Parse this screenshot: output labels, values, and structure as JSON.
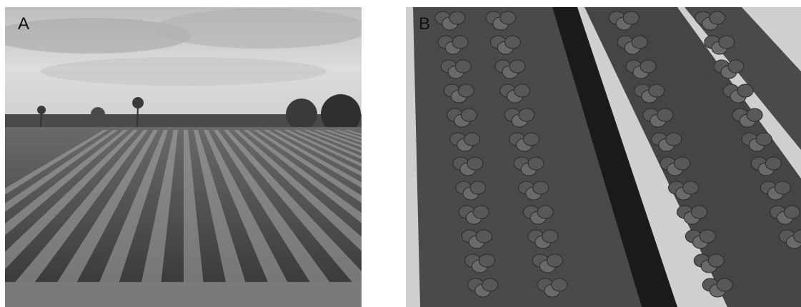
{
  "figure": {
    "panels": [
      {
        "label": "A",
        "icon": "field-rows-photo"
      },
      {
        "label": "B",
        "icon": "strawberry-plants-photo"
      }
    ],
    "palette": {
      "sky": "#cfcfcf",
      "mulch": "#3a3a3a",
      "soil": "#bdbdbd",
      "foliage": "#555555"
    }
  }
}
